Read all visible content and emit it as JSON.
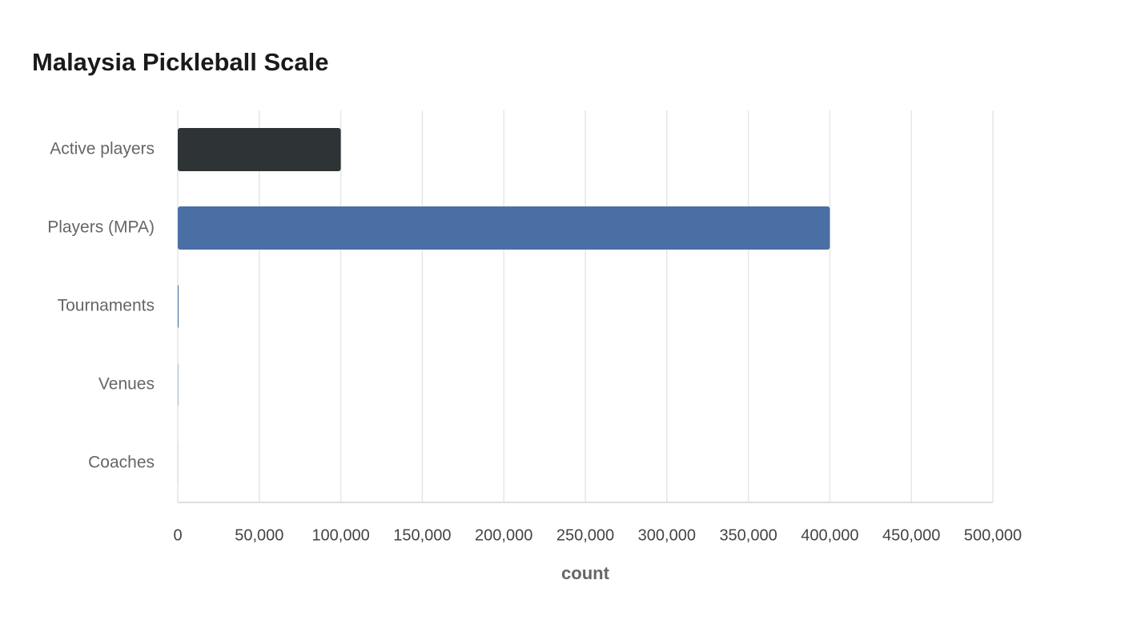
{
  "chart_data": {
    "type": "bar",
    "orientation": "horizontal",
    "title": "Malaysia Pickleball Scale",
    "categories": [
      "Active players",
      "Players (MPA)",
      "Tournaments",
      "Venues",
      "Coaches"
    ],
    "values": [
      100000,
      400000,
      500,
      200,
      50
    ],
    "colors": [
      "#2e3436",
      "#4a6fa5",
      "#4a6fa5",
      "#4a6fa5",
      "#4a6fa5"
    ],
    "x_label": "count",
    "xlim": [
      0,
      500000
    ],
    "xticks": [
      0,
      {
        "value": 50000,
        "label": "50,000"
      },
      {
        "value": 100000,
        "label": "100,000"
      },
      {
        "value": 150000,
        "label": "150,000"
      },
      {
        "value": 200000,
        "label": "200,000"
      },
      {
        "value": 250000,
        "label": "250,000"
      },
      {
        "value": 300000,
        "label": "300,000"
      },
      {
        "value": 350000,
        "label": "350,000"
      },
      {
        "value": 400000,
        "label": "400,000"
      },
      {
        "value": 450000,
        "label": "450,000"
      },
      {
        "value": 500000,
        "label": "500,000"
      }
    ],
    "grid": true
  }
}
